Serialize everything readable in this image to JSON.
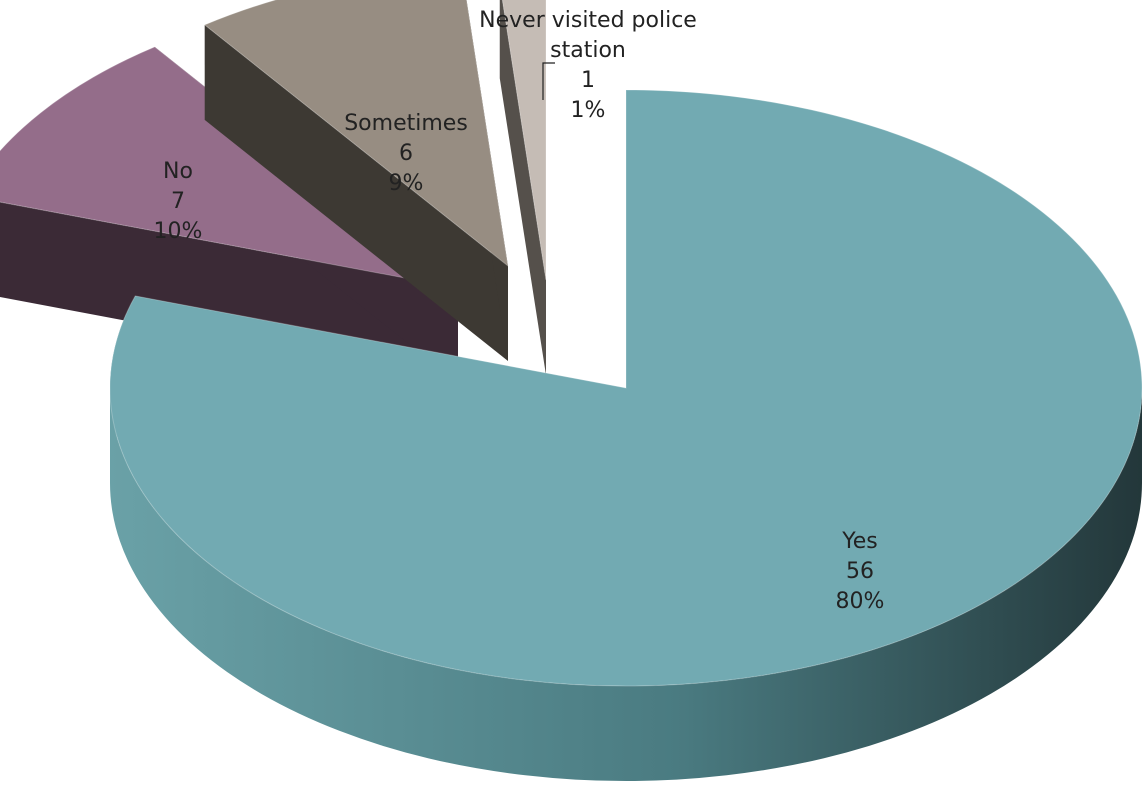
{
  "chart_data": {
    "type": "pie",
    "style": "3d-exploded",
    "title": "",
    "slices": [
      {
        "label": "Yes",
        "value": 56,
        "percent": "80%",
        "color": "#72aab2",
        "label_lines": [
          "Yes",
          "56",
          "80%"
        ]
      },
      {
        "label": "No",
        "value": 7,
        "percent": "10%",
        "color": "#946d8a",
        "label_lines": [
          "No",
          "7",
          "10%"
        ]
      },
      {
        "label": "Sometimes",
        "value": 6,
        "percent": "9%",
        "color": "#978d82",
        "label_lines": [
          "Sometimes",
          "6",
          "9%"
        ]
      },
      {
        "label": "Never visited police station",
        "value": 1,
        "percent": "1%",
        "color": "#c5bcb5",
        "label_lines": [
          "Never visited police",
          "station",
          "1",
          "1%"
        ]
      }
    ],
    "legend": "none",
    "data_labels": "category, value, percent"
  }
}
